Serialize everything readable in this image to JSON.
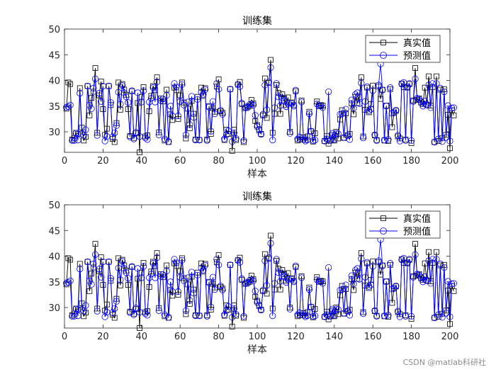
{
  "watermark": "CSDN @matlab科研社",
  "chart_data": [
    {
      "type": "line",
      "title": "训练集",
      "xlabel": "样本",
      "ylabel": "",
      "xlim": [
        0,
        200
      ],
      "ylim": [
        26,
        50
      ],
      "xticks": [
        0,
        20,
        40,
        60,
        80,
        100,
        120,
        140,
        160,
        180,
        200
      ],
      "yticks": [
        30,
        35,
        40,
        45,
        50
      ],
      "legend_position": "top-right",
      "series": [
        {
          "name": "真实值",
          "color": "#000000",
          "marker": "square",
          "values": [
            34.5,
            39.6,
            39.3,
            28.5,
            28.8,
            29.8,
            29.6,
            38.5,
            30.8,
            28.3,
            29.0,
            38.9,
            33.2,
            36.6,
            37.8,
            42.4,
            29.8,
            37.1,
            39.8,
            34.4,
            29.4,
            30.6,
            38.9,
            35.2,
            28.6,
            28.0,
            31.7,
            39.6,
            34.3,
            39.3,
            38.2,
            37.2,
            34.4,
            29.2,
            37.9,
            28.8,
            29.7,
            35.6,
            26.0,
            36.8,
            38.7,
            29.1,
            29.3,
            34.0,
            37.0,
            38.9,
            38.1,
            40.6,
            29.9,
            36.5,
            35.9,
            28.3,
            38.2,
            28.0,
            33.4,
            32.3,
            38.6,
            38.1,
            32.5,
            37.1,
            39.6,
            35.7,
            28.7,
            34.5,
            30.7,
            36.0,
            33.5,
            28.5,
            36.8,
            28.4,
            38.6,
            37.0,
            38.5,
            28.5,
            35.0,
            29.6,
            34.6,
            33.9,
            38.8,
            40.2,
            34.0,
            33.7,
            28.4,
            30.4,
            29.6,
            38.3,
            26.3,
            30.4,
            28.4,
            39.2,
            39.7,
            35.4,
            28.0,
            34.6,
            34.9,
            35.0,
            36.2,
            35.5,
            32.1,
            31.3,
            30.3,
            29.6,
            33.2,
            40.4,
            32.7,
            39.5,
            44.0,
            29.8,
            33.5,
            39.1,
            37.6,
            33.5,
            37.3,
            36.5,
            35.2,
            36.7,
            30.0,
            35.7,
            35.2,
            37.9,
            28.3,
            28.5,
            36.1,
            28.9,
            28.4,
            29.1,
            33.9,
            30.1,
            28.1,
            29.7,
            35.9,
            35.0,
            35.2,
            35.1,
            28.2,
            29.2,
            27.7,
            28.3,
            29.4,
            28.3,
            30.0,
            28.7,
            32.4,
            34.2,
            28.8,
            33.6,
            29.3,
            29.6,
            35.5,
            33.4,
            36.8,
            35.6,
            36.8,
            40.6,
            29.1,
            34.3,
            38.6,
            33.8,
            35.4,
            39.0,
            29.3,
            28.4,
            38.8,
            36.4,
            38.2,
            28.3,
            35.1,
            28.2,
            38.3,
            30.9,
            33.8,
            34.1,
            29.1,
            28.7,
            39.4,
            38.7,
            28.5,
            38.6,
            39.3,
            27.8,
            36.1,
            42.4,
            36.2,
            36.5,
            35.7,
            35.4,
            38.6,
            35.3,
            40.8,
            35.1,
            38.7,
            28.0,
            40.8,
            28.2,
            38.2,
            28.8,
            38.3,
            29.4,
            33.3,
            26.8,
            34.2,
            33.2
          ]
        },
        {
          "name": "预测值",
          "color": "#0000ff",
          "marker": "circle",
          "values": [
            34.8,
            34.9,
            35.2,
            28.3,
            28.3,
            29.7,
            28.4,
            37.5,
            29.6,
            29.3,
            30.4,
            38.9,
            35.2,
            34.5,
            38.5,
            40.3,
            29.3,
            37.5,
            35.9,
            38.9,
            28.2,
            29.1,
            38.9,
            35.7,
            29.0,
            29.8,
            31.2,
            37.7,
            35.4,
            39.0,
            37.6,
            36.8,
            35.7,
            29.0,
            38.0,
            28.6,
            29.9,
            37.6,
            29.1,
            35.8,
            38.0,
            28.8,
            28.5,
            35.8,
            36.5,
            38.6,
            35.8,
            39.7,
            29.4,
            36.1,
            36.4,
            28.6,
            37.1,
            28.1,
            35.0,
            33.1,
            39.4,
            38.7,
            33.1,
            35.9,
            39.2,
            35.2,
            29.4,
            35.8,
            31.4,
            36.9,
            32.8,
            28.4,
            36.3,
            28.4,
            37.7,
            37.3,
            38.2,
            28.3,
            34.8,
            30.1,
            35.9,
            33.5,
            39.4,
            38.3,
            34.2,
            33.4,
            28.6,
            29.4,
            30.2,
            38.3,
            28.1,
            29.8,
            28.7,
            39.2,
            38.8,
            35.6,
            28.3,
            34.8,
            34.7,
            35.3,
            35.4,
            35.2,
            33.2,
            31.0,
            30.5,
            29.5,
            33.4,
            39.1,
            34.3,
            39.7,
            42.5,
            28.4,
            34.7,
            39.4,
            36.8,
            35.1,
            36.6,
            36.1,
            34.9,
            35.5,
            29.7,
            35.5,
            35.0,
            38.1,
            28.6,
            29.0,
            35.8,
            28.5,
            28.2,
            28.4,
            33.5,
            30.1,
            28.3,
            28.4,
            35.4,
            35.1,
            35.0,
            34.7,
            28.2,
            28.6,
            37.8,
            28.3,
            29.7,
            28.5,
            29.7,
            29.6,
            33.4,
            33.5,
            28.9,
            34.4,
            29.2,
            28.5,
            36.2,
            34.6,
            37.3,
            37.6,
            35.5,
            39.5,
            28.8,
            35.9,
            38.8,
            34.1,
            34.4,
            38.0,
            29.4,
            28.3,
            39.1,
            43.2,
            38.1,
            28.4,
            35.0,
            28.5,
            38.6,
            33.6,
            33.7,
            34.2,
            29.3,
            28.2,
            39.3,
            39.6,
            28.3,
            38.8,
            39.4,
            28.3,
            35.9,
            40.3,
            36.5,
            36.3,
            35.9,
            35.0,
            36.0,
            35.2,
            39.1,
            34.7,
            39.4,
            28.0,
            39.4,
            28.6,
            38.5,
            28.1,
            37.8,
            28.9,
            35.1,
            28.2,
            34.6,
            34.7
          ]
        }
      ]
    },
    {
      "type": "line",
      "title": "训练集",
      "xlabel": "样本",
      "ylabel": "",
      "xlim": [
        0,
        200
      ],
      "ylim": [
        26,
        50
      ],
      "xticks": [
        0,
        20,
        40,
        60,
        80,
        100,
        120,
        140,
        160,
        180,
        200
      ],
      "yticks": [
        30,
        35,
        40,
        45,
        50
      ],
      "legend_position": "top-right",
      "series": [
        {
          "name": "真实值",
          "color": "#000000",
          "marker": "square",
          "values": [
            34.5,
            39.6,
            39.3,
            28.5,
            28.8,
            29.8,
            29.6,
            38.5,
            30.8,
            28.3,
            29.0,
            38.9,
            33.2,
            36.6,
            37.8,
            42.4,
            29.8,
            37.1,
            39.8,
            34.4,
            29.4,
            30.6,
            38.9,
            35.2,
            28.6,
            28.0,
            31.7,
            39.6,
            34.3,
            39.3,
            38.2,
            37.2,
            34.4,
            29.2,
            37.9,
            28.8,
            29.7,
            35.6,
            26.0,
            36.8,
            38.7,
            29.1,
            29.3,
            34.0,
            37.0,
            38.9,
            38.1,
            40.6,
            29.9,
            36.5,
            35.9,
            28.3,
            38.2,
            28.0,
            33.4,
            32.3,
            38.6,
            38.1,
            32.5,
            37.1,
            39.6,
            35.7,
            28.7,
            34.5,
            30.7,
            36.0,
            33.5,
            28.5,
            36.8,
            28.4,
            38.6,
            37.0,
            38.5,
            28.5,
            35.0,
            29.6,
            34.6,
            33.9,
            38.8,
            40.2,
            34.0,
            33.7,
            28.4,
            30.4,
            29.6,
            38.3,
            26.3,
            30.4,
            28.4,
            39.2,
            39.7,
            35.4,
            28.0,
            34.6,
            34.9,
            35.0,
            36.2,
            35.5,
            32.1,
            31.3,
            30.3,
            29.6,
            33.2,
            40.4,
            32.7,
            39.5,
            44.0,
            29.8,
            33.5,
            39.1,
            37.6,
            33.5,
            37.3,
            36.5,
            35.2,
            36.7,
            30.0,
            35.7,
            35.2,
            37.9,
            28.3,
            28.5,
            36.1,
            28.9,
            28.4,
            29.1,
            33.9,
            30.1,
            28.1,
            29.7,
            35.9,
            35.0,
            35.2,
            35.1,
            28.2,
            29.2,
            27.7,
            28.3,
            29.4,
            28.3,
            30.0,
            28.7,
            32.4,
            34.2,
            28.8,
            33.6,
            29.3,
            29.6,
            35.5,
            33.4,
            36.8,
            35.6,
            36.8,
            40.6,
            29.1,
            34.3,
            38.6,
            33.8,
            35.4,
            39.0,
            29.3,
            28.4,
            38.8,
            36.4,
            38.2,
            28.3,
            35.1,
            28.2,
            38.3,
            30.9,
            33.8,
            34.1,
            29.1,
            28.7,
            39.4,
            38.7,
            28.5,
            38.6,
            39.3,
            27.8,
            36.1,
            42.4,
            36.2,
            36.5,
            35.7,
            35.4,
            38.6,
            35.3,
            40.8,
            35.1,
            38.7,
            28.0,
            40.8,
            28.2,
            38.2,
            28.8,
            38.3,
            29.4,
            33.3,
            26.8,
            34.2,
            33.2
          ]
        },
        {
          "name": "预测值",
          "color": "#0000ff",
          "marker": "circle",
          "values": [
            34.8,
            34.9,
            35.2,
            28.3,
            28.3,
            29.7,
            28.4,
            37.5,
            29.6,
            29.3,
            30.4,
            38.9,
            35.2,
            34.5,
            38.5,
            40.3,
            29.3,
            37.5,
            35.9,
            38.9,
            28.2,
            29.1,
            38.9,
            35.7,
            29.0,
            29.8,
            31.2,
            37.7,
            35.4,
            39.0,
            37.6,
            36.8,
            35.7,
            29.0,
            38.0,
            28.6,
            29.9,
            37.6,
            29.1,
            35.8,
            38.0,
            28.8,
            28.5,
            35.8,
            36.5,
            38.6,
            35.8,
            39.7,
            29.4,
            36.1,
            36.4,
            28.6,
            37.1,
            28.1,
            35.0,
            33.1,
            39.4,
            38.7,
            33.1,
            35.9,
            39.2,
            35.2,
            29.4,
            35.8,
            31.4,
            36.9,
            32.8,
            28.4,
            36.3,
            28.4,
            37.7,
            37.3,
            38.2,
            28.3,
            34.8,
            30.1,
            35.9,
            33.5,
            39.4,
            38.3,
            34.2,
            33.4,
            28.6,
            29.4,
            30.2,
            38.3,
            28.1,
            29.8,
            28.7,
            39.2,
            38.8,
            35.6,
            28.3,
            34.8,
            34.7,
            35.3,
            35.4,
            35.2,
            33.2,
            31.0,
            30.5,
            29.5,
            33.4,
            39.1,
            34.3,
            39.7,
            42.5,
            28.4,
            34.7,
            39.4,
            36.8,
            35.1,
            36.6,
            36.1,
            34.9,
            35.5,
            29.7,
            35.5,
            35.0,
            38.1,
            28.6,
            29.0,
            35.8,
            28.5,
            28.2,
            28.4,
            33.5,
            30.1,
            28.3,
            28.4,
            35.4,
            35.1,
            35.0,
            34.7,
            28.2,
            28.6,
            37.8,
            28.3,
            29.7,
            28.5,
            29.7,
            29.6,
            33.4,
            33.5,
            28.9,
            34.4,
            29.2,
            28.5,
            36.2,
            34.6,
            37.3,
            37.6,
            35.5,
            39.5,
            28.8,
            35.9,
            38.8,
            34.1,
            34.4,
            38.0,
            29.4,
            28.3,
            39.1,
            43.2,
            38.1,
            28.4,
            35.0,
            28.5,
            38.6,
            33.6,
            33.7,
            34.2,
            29.3,
            28.2,
            39.3,
            39.6,
            28.3,
            38.8,
            39.4,
            28.3,
            35.9,
            40.3,
            36.5,
            36.3,
            35.9,
            35.0,
            36.0,
            35.2,
            39.1,
            34.7,
            39.4,
            28.0,
            39.4,
            28.6,
            38.5,
            28.1,
            37.8,
            28.9,
            35.1,
            28.2,
            34.6,
            34.7
          ]
        }
      ]
    }
  ]
}
